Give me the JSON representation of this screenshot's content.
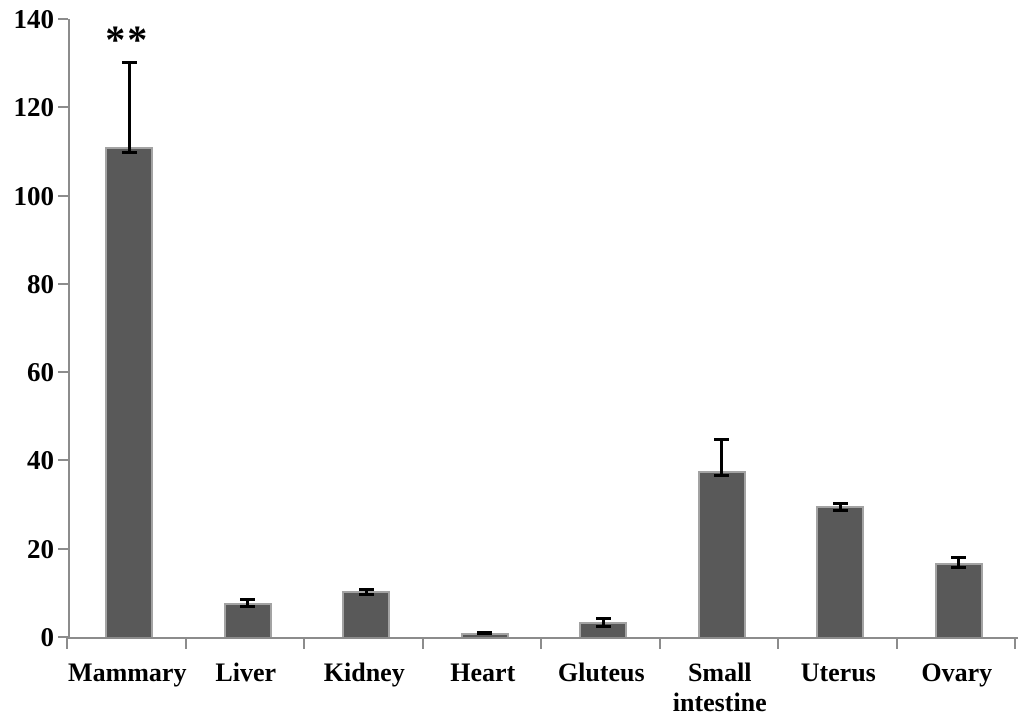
{
  "chart_data": {
    "type": "bar",
    "title": "",
    "xlabel": "",
    "ylabel": "",
    "grid": false,
    "legend_position": "none",
    "categories": [
      "Mammary",
      "Liver",
      "Kidney",
      "Heart",
      "Gluteus",
      "Small intestine",
      "Uterus",
      "Ovary"
    ],
    "values": [
      111,
      7.8,
      10.4,
      0.9,
      3.4,
      37.6,
      29.7,
      16.8
    ],
    "errors_up": [
      19.5,
      1.0,
      0.8,
      0.5,
      1.1,
      7.4,
      0.9,
      1.6
    ],
    "errors_down": [
      1.5,
      1.2,
      1.2,
      0.5,
      1.3,
      1.3,
      1.4,
      1.3
    ],
    "y_ticks": [
      0,
      20,
      40,
      60,
      80,
      100,
      120,
      140
    ],
    "ylim": [
      0,
      140
    ],
    "annotations": [
      {
        "text": "**",
        "category": "Mammary",
        "position": "above-error-bar"
      }
    ],
    "colors": {
      "bar_fill": "#595959",
      "bar_border": "#a3a3a3",
      "axis_line": "#8c8c8c",
      "error_bar": "#000000",
      "text": "#000000",
      "background": "#ffffff"
    }
  }
}
